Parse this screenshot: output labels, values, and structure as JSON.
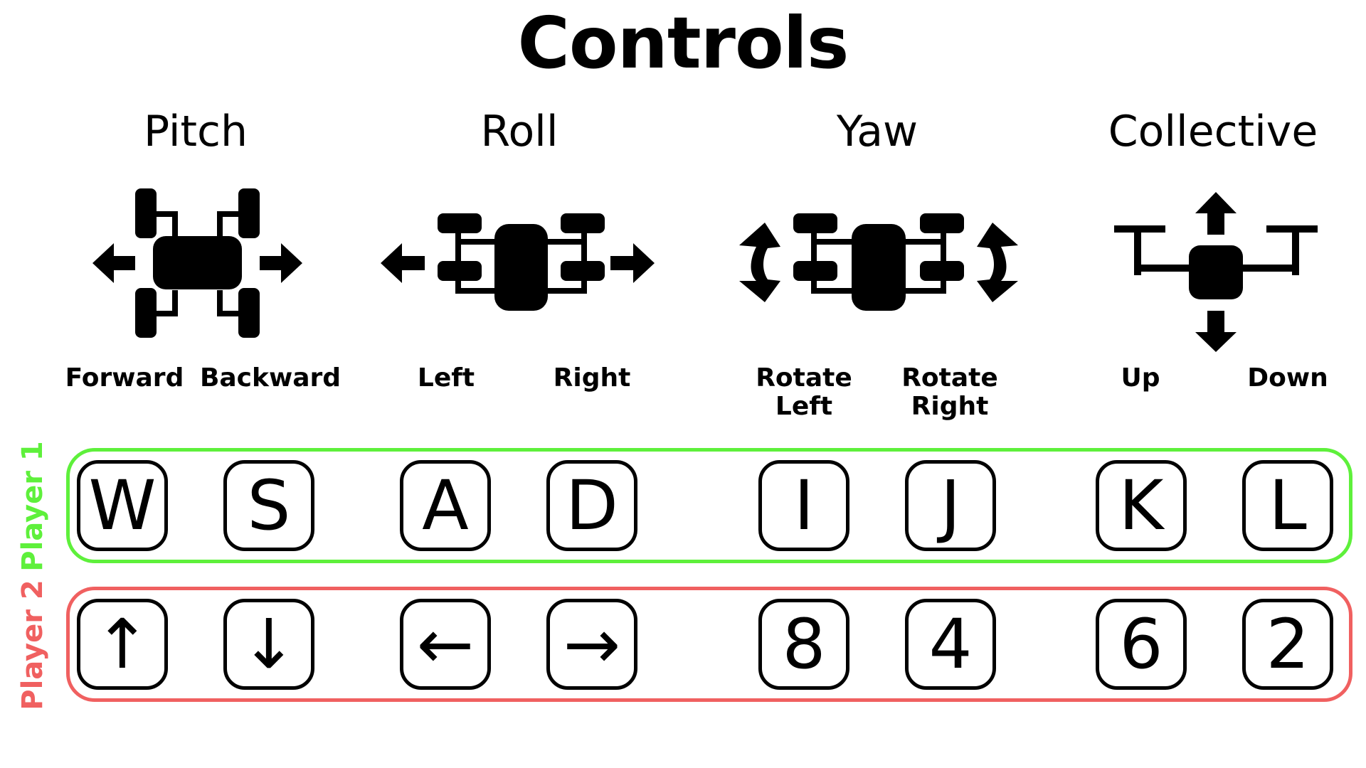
{
  "title": "Controls",
  "categories": [
    {
      "name": "Pitch",
      "icon": "pitch-drone-icon",
      "actions": [
        "Forward",
        "Backward"
      ]
    },
    {
      "name": "Roll",
      "icon": "roll-drone-icon",
      "actions": [
        "Left",
        "Right"
      ]
    },
    {
      "name": "Yaw",
      "icon": "yaw-drone-icon",
      "actions": [
        "Rotate Left",
        "Rotate Right"
      ]
    },
    {
      "name": "Collective",
      "icon": "collective-drone-icon",
      "actions": [
        "Up",
        "Down"
      ]
    }
  ],
  "players": [
    {
      "label": "Player 1",
      "color": "#5ef03b",
      "keys": [
        "W",
        "S",
        "A",
        "D",
        "I",
        "J",
        "K",
        "L"
      ]
    },
    {
      "label": "Player 2",
      "color": "#f06060",
      "keys": [
        "↑",
        "↓",
        "←",
        "→",
        "8",
        "4",
        "6",
        "2"
      ]
    }
  ]
}
